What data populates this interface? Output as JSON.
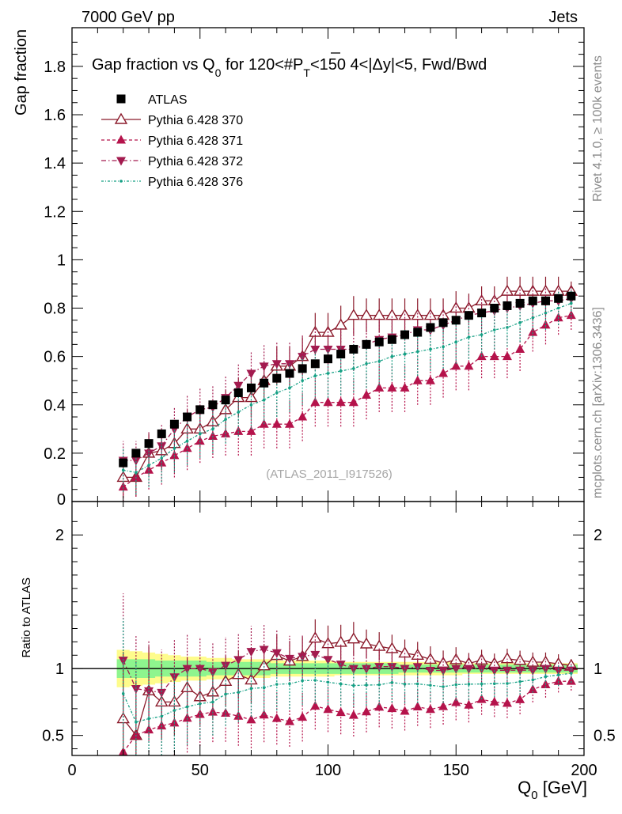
{
  "header": {
    "left": "7000 GeV pp",
    "right": "Jets",
    "rivet": "Rivet 4.1.0, ≥ 100k events",
    "mcplots": "mcplots.cern.ch [arXiv:1306.3436]",
    "watermark": "(ATLAS_2011_I917526)"
  },
  "colors": {
    "data": "#000000",
    "p370": "#8b1a2b",
    "p371": "#b5134b",
    "p372": "#a31b4f",
    "p376": "#16a085",
    "band_inner": "#8ef58e",
    "band_outer": "#fefc8c"
  },
  "chart_data": {
    "type": "scatter",
    "title_parts": [
      "Gap fraction vs Q",
      "0",
      " for 120<#",
      "P",
      "T",
      "<150  4<|Δy|<5, Fwd/Bwd"
    ],
    "xlabel_parts": [
      "Q",
      "0",
      " [GeV]"
    ],
    "ylabel": "Gap fraction",
    "ratio_ylabel": "Ratio to ATLAS",
    "xlim": [
      0,
      200
    ],
    "ylim": [
      0,
      1.96
    ],
    "ratio_ylim": [
      0.35,
      2.25
    ],
    "xticks": [
      0,
      50,
      100,
      150,
      200
    ],
    "yticks": [
      0.2,
      0.4,
      0.6,
      0.8,
      1,
      1.2,
      1.4,
      1.6,
      1.8
    ],
    "ytick_labels": [
      "0.2",
      "0.4",
      "0.6",
      "0.8",
      "1",
      "1.2",
      "1.4",
      "1.6",
      "1.8"
    ],
    "ybottom_label": "0",
    "ratio_yticks": [
      0.5,
      1,
      2
    ],
    "ratio_ytick_labels": [
      "0.5",
      "1",
      "2"
    ],
    "legend_position": "top-left",
    "x": [
      20,
      25,
      30,
      35,
      40,
      45,
      50,
      55,
      60,
      65,
      70,
      75,
      80,
      85,
      90,
      95,
      100,
      105,
      110,
      115,
      120,
      125,
      130,
      135,
      140,
      145,
      150,
      155,
      160,
      165,
      170,
      175,
      180,
      185,
      190,
      195
    ],
    "series": [
      {
        "key": "atlas",
        "name": "ATLAS",
        "marker": "square",
        "values": [
          0.16,
          0.2,
          0.24,
          0.28,
          0.32,
          0.35,
          0.38,
          0.4,
          0.42,
          0.45,
          0.47,
          0.49,
          0.51,
          0.53,
          0.55,
          0.57,
          0.59,
          0.61,
          0.63,
          0.65,
          0.66,
          0.67,
          0.69,
          0.7,
          0.72,
          0.74,
          0.75,
          0.77,
          0.78,
          0.8,
          0.81,
          0.82,
          0.83,
          0.83,
          0.84,
          0.85
        ]
      },
      {
        "key": "p370",
        "name": "Pythia 6.428 370",
        "marker": "open-triangle-up",
        "line": "solid",
        "values": [
          0.1,
          0.1,
          0.2,
          0.21,
          0.24,
          0.3,
          0.3,
          0.33,
          0.38,
          0.43,
          0.43,
          0.5,
          0.56,
          0.56,
          0.6,
          0.7,
          0.7,
          0.73,
          0.77,
          0.77,
          0.77,
          0.77,
          0.77,
          0.77,
          0.77,
          0.77,
          0.8,
          0.8,
          0.83,
          0.83,
          0.87,
          0.87,
          0.87,
          0.87,
          0.87,
          0.87
        ],
        "errors": [
          0.08,
          0.08,
          0.08,
          0.08,
          0.08,
          0.08,
          0.08,
          0.08,
          0.08,
          0.08,
          0.08,
          0.08,
          0.08,
          0.08,
          0.08,
          0.08,
          0.08,
          0.08,
          0.08,
          0.07,
          0.07,
          0.07,
          0.07,
          0.07,
          0.07,
          0.07,
          0.07,
          0.06,
          0.06,
          0.06,
          0.06,
          0.06,
          0.06,
          0.06,
          0.06,
          0.04
        ]
      },
      {
        "key": "p371",
        "name": "Pythia 6.428 371",
        "marker": "triangle-up",
        "line": "dashed",
        "values": [
          0.06,
          0.1,
          0.13,
          0.16,
          0.19,
          0.22,
          0.25,
          0.27,
          0.28,
          0.29,
          0.29,
          0.32,
          0.32,
          0.32,
          0.35,
          0.41,
          0.41,
          0.41,
          0.41,
          0.44,
          0.47,
          0.47,
          0.47,
          0.5,
          0.5,
          0.53,
          0.56,
          0.56,
          0.6,
          0.6,
          0.6,
          0.63,
          0.7,
          0.73,
          0.76,
          0.77
        ],
        "errors": [
          0.07,
          0.08,
          0.08,
          0.09,
          0.09,
          0.09,
          0.09,
          0.09,
          0.09,
          0.1,
          0.1,
          0.1,
          0.1,
          0.1,
          0.1,
          0.1,
          0.1,
          0.1,
          0.1,
          0.1,
          0.1,
          0.1,
          0.1,
          0.1,
          0.1,
          0.1,
          0.1,
          0.1,
          0.09,
          0.09,
          0.09,
          0.09,
          0.08,
          0.08,
          0.07,
          0.06
        ]
      },
      {
        "key": "p372",
        "name": "Pythia 6.428 372",
        "marker": "triangle-down",
        "line": "dash-dot",
        "values": [
          0.17,
          0.17,
          0.2,
          0.23,
          0.3,
          0.35,
          0.38,
          0.39,
          0.43,
          0.48,
          0.53,
          0.56,
          0.57,
          0.57,
          0.6,
          0.63,
          0.63,
          0.63,
          0.63,
          0.65,
          0.67,
          0.68,
          0.69,
          0.71,
          0.71,
          0.73,
          0.75,
          0.77,
          0.78,
          0.79,
          0.8,
          0.81,
          0.82,
          0.83,
          0.83,
          0.84
        ],
        "errors": [
          0.08,
          0.08,
          0.09,
          0.09,
          0.09,
          0.09,
          0.09,
          0.09,
          0.09,
          0.09,
          0.09,
          0.09,
          0.09,
          0.09,
          0.09,
          0.09,
          0.09,
          0.09,
          0.09,
          0.09,
          0.09,
          0.09,
          0.09,
          0.08,
          0.08,
          0.08,
          0.08,
          0.08,
          0.08,
          0.07,
          0.07,
          0.07,
          0.07,
          0.06,
          0.06,
          0.05
        ]
      },
      {
        "key": "p376",
        "name": "Pythia 6.428 376",
        "marker": "dot",
        "line": "dash-dot-fine",
        "values": [
          0.13,
          0.12,
          0.15,
          0.18,
          0.22,
          0.25,
          0.28,
          0.3,
          0.34,
          0.37,
          0.4,
          0.42,
          0.45,
          0.47,
          0.5,
          0.52,
          0.53,
          0.54,
          0.55,
          0.57,
          0.58,
          0.6,
          0.61,
          0.62,
          0.63,
          0.64,
          0.66,
          0.68,
          0.69,
          0.71,
          0.72,
          0.74,
          0.76,
          0.78,
          0.8,
          0.82
        ],
        "errors": [
          0.09,
          0.09,
          0.09,
          0.1,
          0.1,
          0.1,
          0.1,
          0.1,
          0.1,
          0.1,
          0.1,
          0.1,
          0.1,
          0.1,
          0.1,
          0.1,
          0.1,
          0.1,
          0.1,
          0.1,
          0.1,
          0.1,
          0.1,
          0.1,
          0.09,
          0.09,
          0.09,
          0.09,
          0.09,
          0.08,
          0.08,
          0.08,
          0.08,
          0.07,
          0.07,
          0.06
        ]
      }
    ],
    "ratio_band": {
      "inner": [
        0.07,
        0.07,
        0.07,
        0.06,
        0.06,
        0.06,
        0.06,
        0.05,
        0.05,
        0.05,
        0.05,
        0.05,
        0.04,
        0.04,
        0.04,
        0.04,
        0.04,
        0.04,
        0.04,
        0.04,
        0.04,
        0.04,
        0.03,
        0.03,
        0.03,
        0.03,
        0.03,
        0.03,
        0.03,
        0.03,
        0.03,
        0.03,
        0.03,
        0.03,
        0.03,
        0.03
      ],
      "outer": [
        0.14,
        0.13,
        0.12,
        0.11,
        0.1,
        0.09,
        0.09,
        0.08,
        0.08,
        0.07,
        0.07,
        0.07,
        0.06,
        0.06,
        0.06,
        0.06,
        0.06,
        0.05,
        0.05,
        0.05,
        0.05,
        0.05,
        0.05,
        0.05,
        0.05,
        0.05,
        0.05,
        0.04,
        0.04,
        0.04,
        0.04,
        0.04,
        0.04,
        0.04,
        0.04,
        0.04
      ]
    }
  }
}
